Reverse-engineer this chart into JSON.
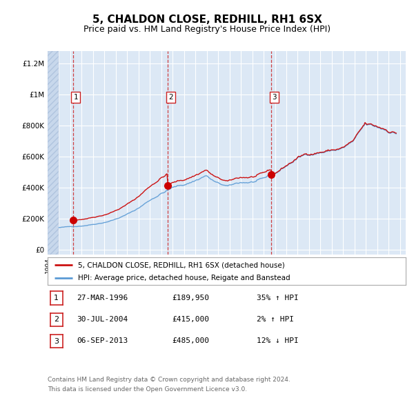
{
  "title": "5, CHALDON CLOSE, REDHILL, RH1 6SX",
  "subtitle": "Price paid vs. HM Land Registry's House Price Index (HPI)",
  "title_fontsize": 11,
  "subtitle_fontsize": 9,
  "ylabel_ticks": [
    "£0",
    "£200K",
    "£400K",
    "£600K",
    "£800K",
    "£1M",
    "£1.2M"
  ],
  "ytick_values": [
    0,
    200000,
    400000,
    600000,
    800000,
    1000000,
    1200000
  ],
  "ylim": [
    -30000,
    1280000
  ],
  "xlim_start": 1994.0,
  "xlim_end": 2025.5,
  "background_color": "#ffffff",
  "plot_bg_color": "#dce8f5",
  "hatch_color": "#c8d8ec",
  "grid_color": "#ffffff",
  "hpi_color": "#5b9bd5",
  "price_color": "#cc1111",
  "marker_color": "#cc0000",
  "dashed_line_color": "#cc2222",
  "sale_points": [
    {
      "year": 1996.23,
      "price": 189950,
      "label": "1"
    },
    {
      "year": 2004.58,
      "price": 415000,
      "label": "2"
    },
    {
      "year": 2013.68,
      "price": 485000,
      "label": "3"
    }
  ],
  "hatch_end": 1995.0,
  "legend_entries": [
    "5, CHALDON CLOSE, REDHILL, RH1 6SX (detached house)",
    "HPI: Average price, detached house, Reigate and Banstead"
  ],
  "table_rows": [
    {
      "num": "1",
      "date": "27-MAR-1996",
      "price": "£189,950",
      "change": "35% ↑ HPI"
    },
    {
      "num": "2",
      "date": "30-JUL-2004",
      "price": "£415,000",
      "change": "2% ↑ HPI"
    },
    {
      "num": "3",
      "date": "06-SEP-2013",
      "price": "£485,000",
      "change": "12% ↓ HPI"
    }
  ],
  "footer": "Contains HM Land Registry data © Crown copyright and database right 2024.\nThis data is licensed under the Open Government Licence v3.0."
}
